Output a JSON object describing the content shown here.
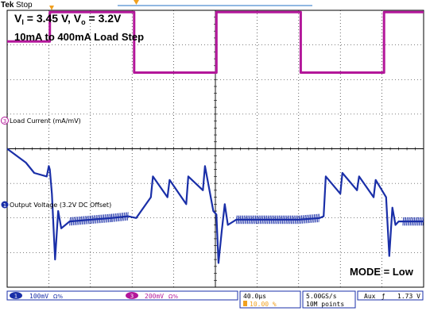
{
  "header": {
    "brand": "Tek",
    "state": "Stop"
  },
  "annotations": {
    "line1_prefix": "V",
    "line1_sub": "I",
    "line1_mid": " = 3.45 V, V",
    "line1_sub2": "o",
    "line1_end": " = 3.2V",
    "line2": "10mA to 400mA Load Step",
    "mode": "MODE = Low"
  },
  "channels": {
    "ch3_marker": "3",
    "ch3_label": "Load Current (mA/mV)",
    "ch1_marker": "1",
    "ch1_label": "Output Voltage (3.2V DC Offset)"
  },
  "status_bar": {
    "ch1_num": "1",
    "ch1_scale": "100mV",
    "ch1_coupling": "Ω%",
    "ch3_num": "3",
    "ch3_scale": "200mV",
    "ch3_coupling": "Ω%",
    "timebase": "40.0µs",
    "trigger_position": "10.00 %",
    "sample_rate": "5.00GS/s",
    "record_length": "10M points",
    "trigger_source": "Aux",
    "trigger_slope": "ƒ",
    "trigger_level": "1.73 V"
  },
  "colors": {
    "ch1": "#1a2fa8",
    "ch3": "#b3179a",
    "grid": "#000000",
    "trigger_marker": "#f0a020"
  },
  "chart_data": {
    "type": "line",
    "title": "",
    "x_divisions": 10,
    "y_divisions": 8,
    "series": [
      {
        "name": "Load Current",
        "x_div": [
          0,
          2.05,
          2.05,
          6.1,
          6.1,
          10.05,
          10.05,
          14.1,
          14.1,
          18.1,
          18.1,
          20
        ],
        "y_div": [
          7.1,
          7.1,
          7.95,
          7.95,
          6.2,
          6.2,
          7.95,
          7.95,
          6.2,
          6.2,
          7.95,
          7.95
        ]
      },
      {
        "name": "Output Voltage",
        "x_div": [
          0,
          0.9,
          1.3,
          1.9,
          2.0,
          2.05,
          2.15,
          2.3,
          2.45,
          2.6,
          3.0,
          5.0,
          5.8,
          6.2,
          6.9,
          7.0,
          7.7,
          7.8,
          8.6,
          8.7,
          9.4,
          9.5,
          9.9,
          10.05,
          10.15,
          10.3,
          10.45,
          10.6,
          11.0,
          14.0,
          15.0,
          15.2,
          15.3,
          16.0,
          16.1,
          16.8,
          16.9,
          17.6,
          17.7,
          18.2,
          18.35,
          18.5,
          18.65,
          18.8,
          19.0,
          20
        ],
        "y_div": [
          4.0,
          3.6,
          3.3,
          3.2,
          3.5,
          3.4,
          2.7,
          0.8,
          2.2,
          1.7,
          1.9,
          2.0,
          2.05,
          2.0,
          2.6,
          3.2,
          2.6,
          3.1,
          2.4,
          3.2,
          2.8,
          3.5,
          2.2,
          2.1,
          0.7,
          1.6,
          2.4,
          1.8,
          1.95,
          1.95,
          2.0,
          2.05,
          3.2,
          2.7,
          3.3,
          2.8,
          3.2,
          2.6,
          3.1,
          2.6,
          0.9,
          2.3,
          1.8,
          1.9,
          1.9,
          1.9
        ]
      }
    ]
  }
}
